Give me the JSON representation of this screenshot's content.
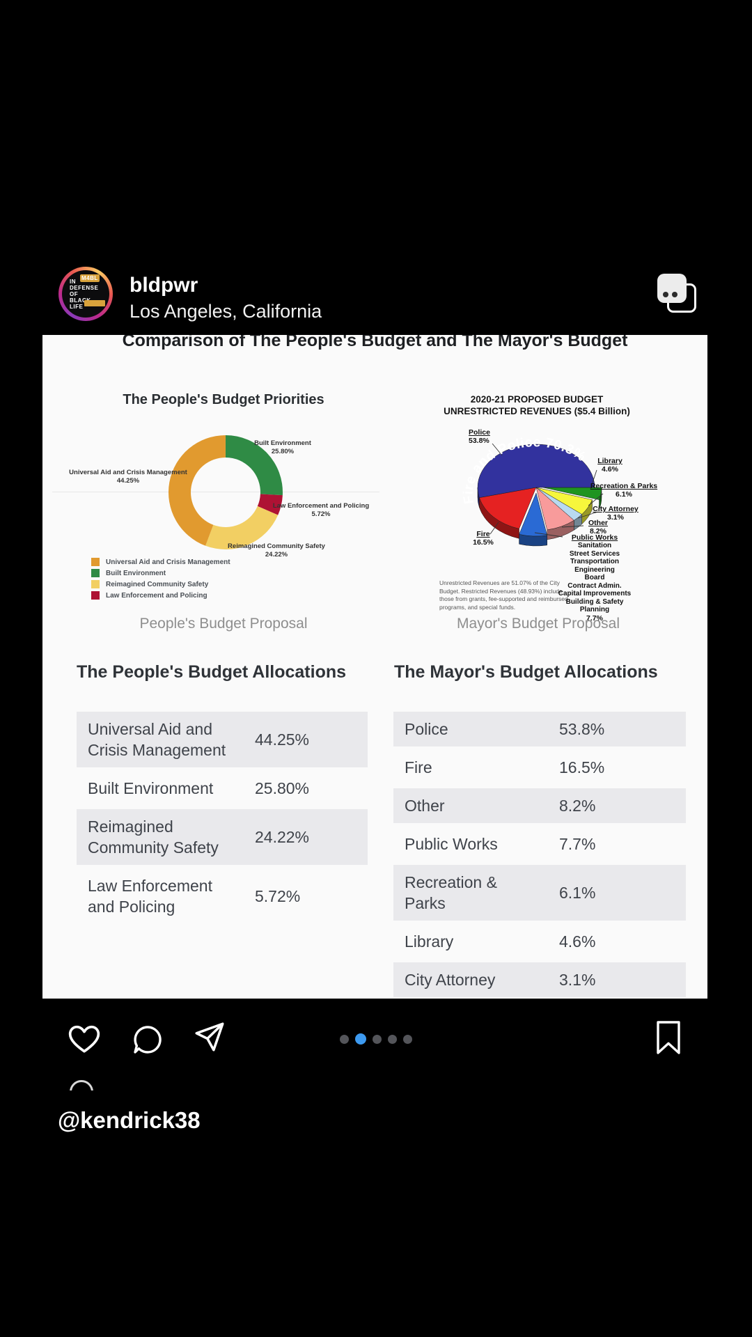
{
  "header": {
    "username": "bldpwr",
    "location": "Los Angeles, California",
    "avatar_lines": [
      "IN",
      "DEFENSE",
      "OF",
      "BLACK",
      "LIFE"
    ],
    "avatar_badge": "M4BL"
  },
  "post": {
    "title": "Comparison of The People's Budget and The Mayor's Budget",
    "sections": {
      "people_heading": "The People's Budget Allocations",
      "mayor_heading": "The Mayor's Budget Allocations"
    }
  },
  "chart_data": [
    {
      "type": "pie",
      "subtype": "donut",
      "title": "The People's Budget Priorities",
      "caption": "People's Budget Proposal",
      "segments": [
        {
          "label": "Built Environment",
          "pct_label": "25.80%",
          "value": 25.8,
          "color": "#2f8b45"
        },
        {
          "label": "Law Enforcement and Policing",
          "pct_label": "5.72%",
          "value": 5.72,
          "color": "#ae1234"
        },
        {
          "label": "Reimagined Community Safety",
          "pct_label": "24.22%",
          "value": 24.22,
          "color": "#f2cf63"
        },
        {
          "label": "Universal Aid and Crisis Management",
          "pct_label": "44.25%",
          "value": 44.25,
          "color": "#e19a2f"
        }
      ],
      "legend": [
        {
          "label": "Universal Aid and Crisis Management",
          "color": "#e19a2f"
        },
        {
          "label": "Built Environment",
          "color": "#2f8b45"
        },
        {
          "label": "Reimagined Community Safety",
          "color": "#f2cf63"
        },
        {
          "label": "Law Enforcement and Policing",
          "color": "#ae1234"
        }
      ]
    },
    {
      "type": "pie",
      "subtype": "3d-pie",
      "title_lines": [
        "2020-21 PROPOSED BUDGET",
        "UNRESTRICTED REVENUES ($5.4 Billion)"
      ],
      "caption": "Mayor's Budget Proposal",
      "arc_label": "Fire and Police 70.3%",
      "segments": [
        {
          "label": "Library",
          "pct_label": "4.6%",
          "value": 4.6,
          "color": "#1f9420"
        },
        {
          "label": "Recreation & Parks",
          "pct_label": "6.1%",
          "value": 6.1,
          "color": "#f6f63c"
        },
        {
          "label": "City Attorney",
          "pct_label": "3.1%",
          "value": 3.1,
          "color": "#b8d9f0"
        },
        {
          "label": "Other",
          "pct_label": "8.2%",
          "value": 8.2,
          "color": "#f89b9b"
        },
        {
          "label": "Public Works",
          "pct_label": "7.7%",
          "value": 7.7,
          "color": "#2a6ad4",
          "sub_items": [
            "Sanitation",
            "Street Services",
            "Transportation",
            "Engineering",
            "Board",
            "Contract Admin.",
            "Capital Improvements",
            "Building & Safety",
            "Planning"
          ]
        },
        {
          "label": "Fire",
          "pct_label": "16.5%",
          "value": 16.5,
          "color": "#e52222"
        },
        {
          "label": "Police",
          "pct_label": "53.8%",
          "value": 53.8,
          "color": "#32329e"
        }
      ],
      "footnote": "Unrestricted Revenues are 51.07% of the City Budget. Restricted Revenues (48.93%) include those from grants, fee-supported and reimbursed programs, and special funds."
    }
  ],
  "tables": {
    "people": {
      "rows": [
        [
          "Universal Aid and Crisis Management",
          "44.25%"
        ],
        [
          "Built Environment",
          "25.80%"
        ],
        [
          "Reimagined Community Safety",
          "24.22%"
        ],
        [
          "Law Enforcement and Policing",
          "5.72%"
        ]
      ]
    },
    "mayor": {
      "rows": [
        [
          "Police",
          "53.8%"
        ],
        [
          "Fire",
          "16.5%"
        ],
        [
          "Other",
          "8.2%"
        ],
        [
          "Public Works",
          "7.7%"
        ],
        [
          "Recreation & Parks",
          "6.1%"
        ],
        [
          "Library",
          "4.6%"
        ],
        [
          "City Attorney",
          "3.1%"
        ]
      ]
    }
  },
  "action_bar": {
    "carousel_dots": {
      "count": 5,
      "active_index": 1
    },
    "colors": {
      "active_dot": "#3d9af0",
      "dot": "#54555a"
    }
  },
  "footer": {
    "handle": "@kendrick38"
  }
}
